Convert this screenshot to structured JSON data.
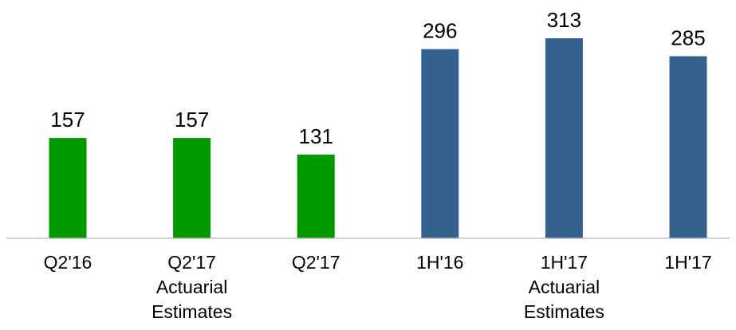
{
  "chart_data": {
    "type": "bar",
    "categories": [
      [
        "Q2'16"
      ],
      [
        "Q2'17",
        "Actuarial",
        "Estimates"
      ],
      [
        "Q2'17"
      ],
      [
        "1H'16"
      ],
      [
        "1H'17",
        "Actuarial",
        "Estimates"
      ],
      [
        "1H'17"
      ]
    ],
    "values": [
      157,
      157,
      131,
      296,
      313,
      285
    ],
    "bar_colors": [
      "#009900",
      "#009900",
      "#009900",
      "#35618f",
      "#35618f",
      "#35618f"
    ],
    "ylim": [
      0,
      313
    ],
    "grid": false,
    "axis_color": "#bfbfbf"
  }
}
